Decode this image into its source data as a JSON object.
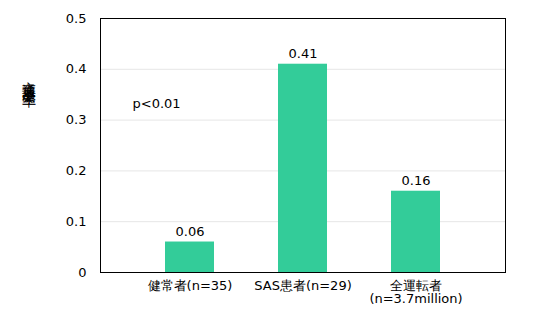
{
  "chart_data": {
    "type": "bar",
    "y_label": "交通事故発生率",
    "categories": [
      "健常者(n=35)",
      "SAS患者(n=29)",
      "全運転者\n(n=3.7million)"
    ],
    "values": [
      0.06,
      0.41,
      0.16
    ],
    "color": "#33cc99",
    "ylim": [
      0,
      0.5
    ],
    "yticks": [
      0,
      0.1,
      0.2,
      0.3,
      0.4,
      0.5
    ],
    "grid": true,
    "data_labels": true,
    "annotations": [
      "p<0.01"
    ]
  }
}
